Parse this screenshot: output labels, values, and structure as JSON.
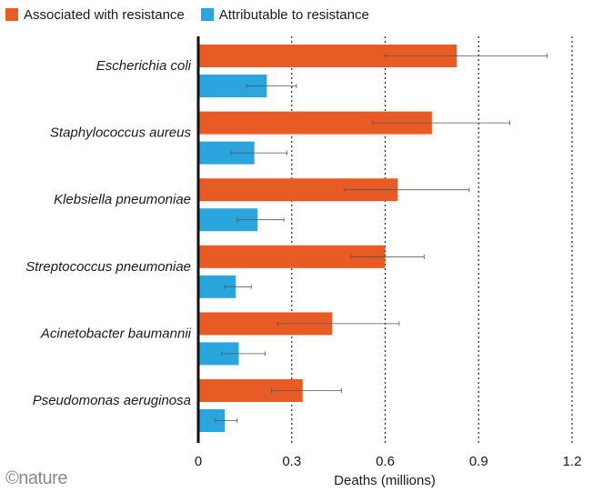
{
  "legend": {
    "associated": "Associated with resistance",
    "attributable": "Attributable to resistance"
  },
  "colors": {
    "associated": "#e95b24",
    "attributable": "#2aa5de",
    "error": "#555555",
    "axis": "#111111",
    "grid": "#222222"
  },
  "brand": "©nature",
  "chart_data": {
    "type": "bar",
    "orientation": "horizontal",
    "categories": [
      "Escherichia coli",
      "Staphylococcus aureus",
      "Klebsiella pneumoniae",
      "Streptococcus pneumoniae",
      "Acinetobacter baumannii",
      "Pseudomonas aeruginosa"
    ],
    "series": [
      {
        "name": "Associated with resistance",
        "values": [
          0.83,
          0.75,
          0.64,
          0.6,
          0.43,
          0.335
        ],
        "error_low": [
          0.6,
          0.56,
          0.47,
          0.49,
          0.255,
          0.235
        ],
        "error_high": [
          1.12,
          1.0,
          0.87,
          0.725,
          0.645,
          0.46
        ]
      },
      {
        "name": "Attributable to resistance",
        "values": [
          0.22,
          0.18,
          0.19,
          0.12,
          0.13,
          0.085
        ],
        "error_low": [
          0.155,
          0.105,
          0.125,
          0.085,
          0.075,
          0.055
        ],
        "error_high": [
          0.315,
          0.285,
          0.275,
          0.17,
          0.215,
          0.125
        ]
      }
    ],
    "xlabel": "Deaths (millions)",
    "xticks": [
      0,
      0.3,
      0.6,
      0.9,
      1.2
    ],
    "xtick_labels": [
      "0",
      "0.3",
      "0.6",
      "0.9",
      "1.2"
    ],
    "xlim": [
      0,
      1.2
    ],
    "grid": "vertical dotted"
  }
}
